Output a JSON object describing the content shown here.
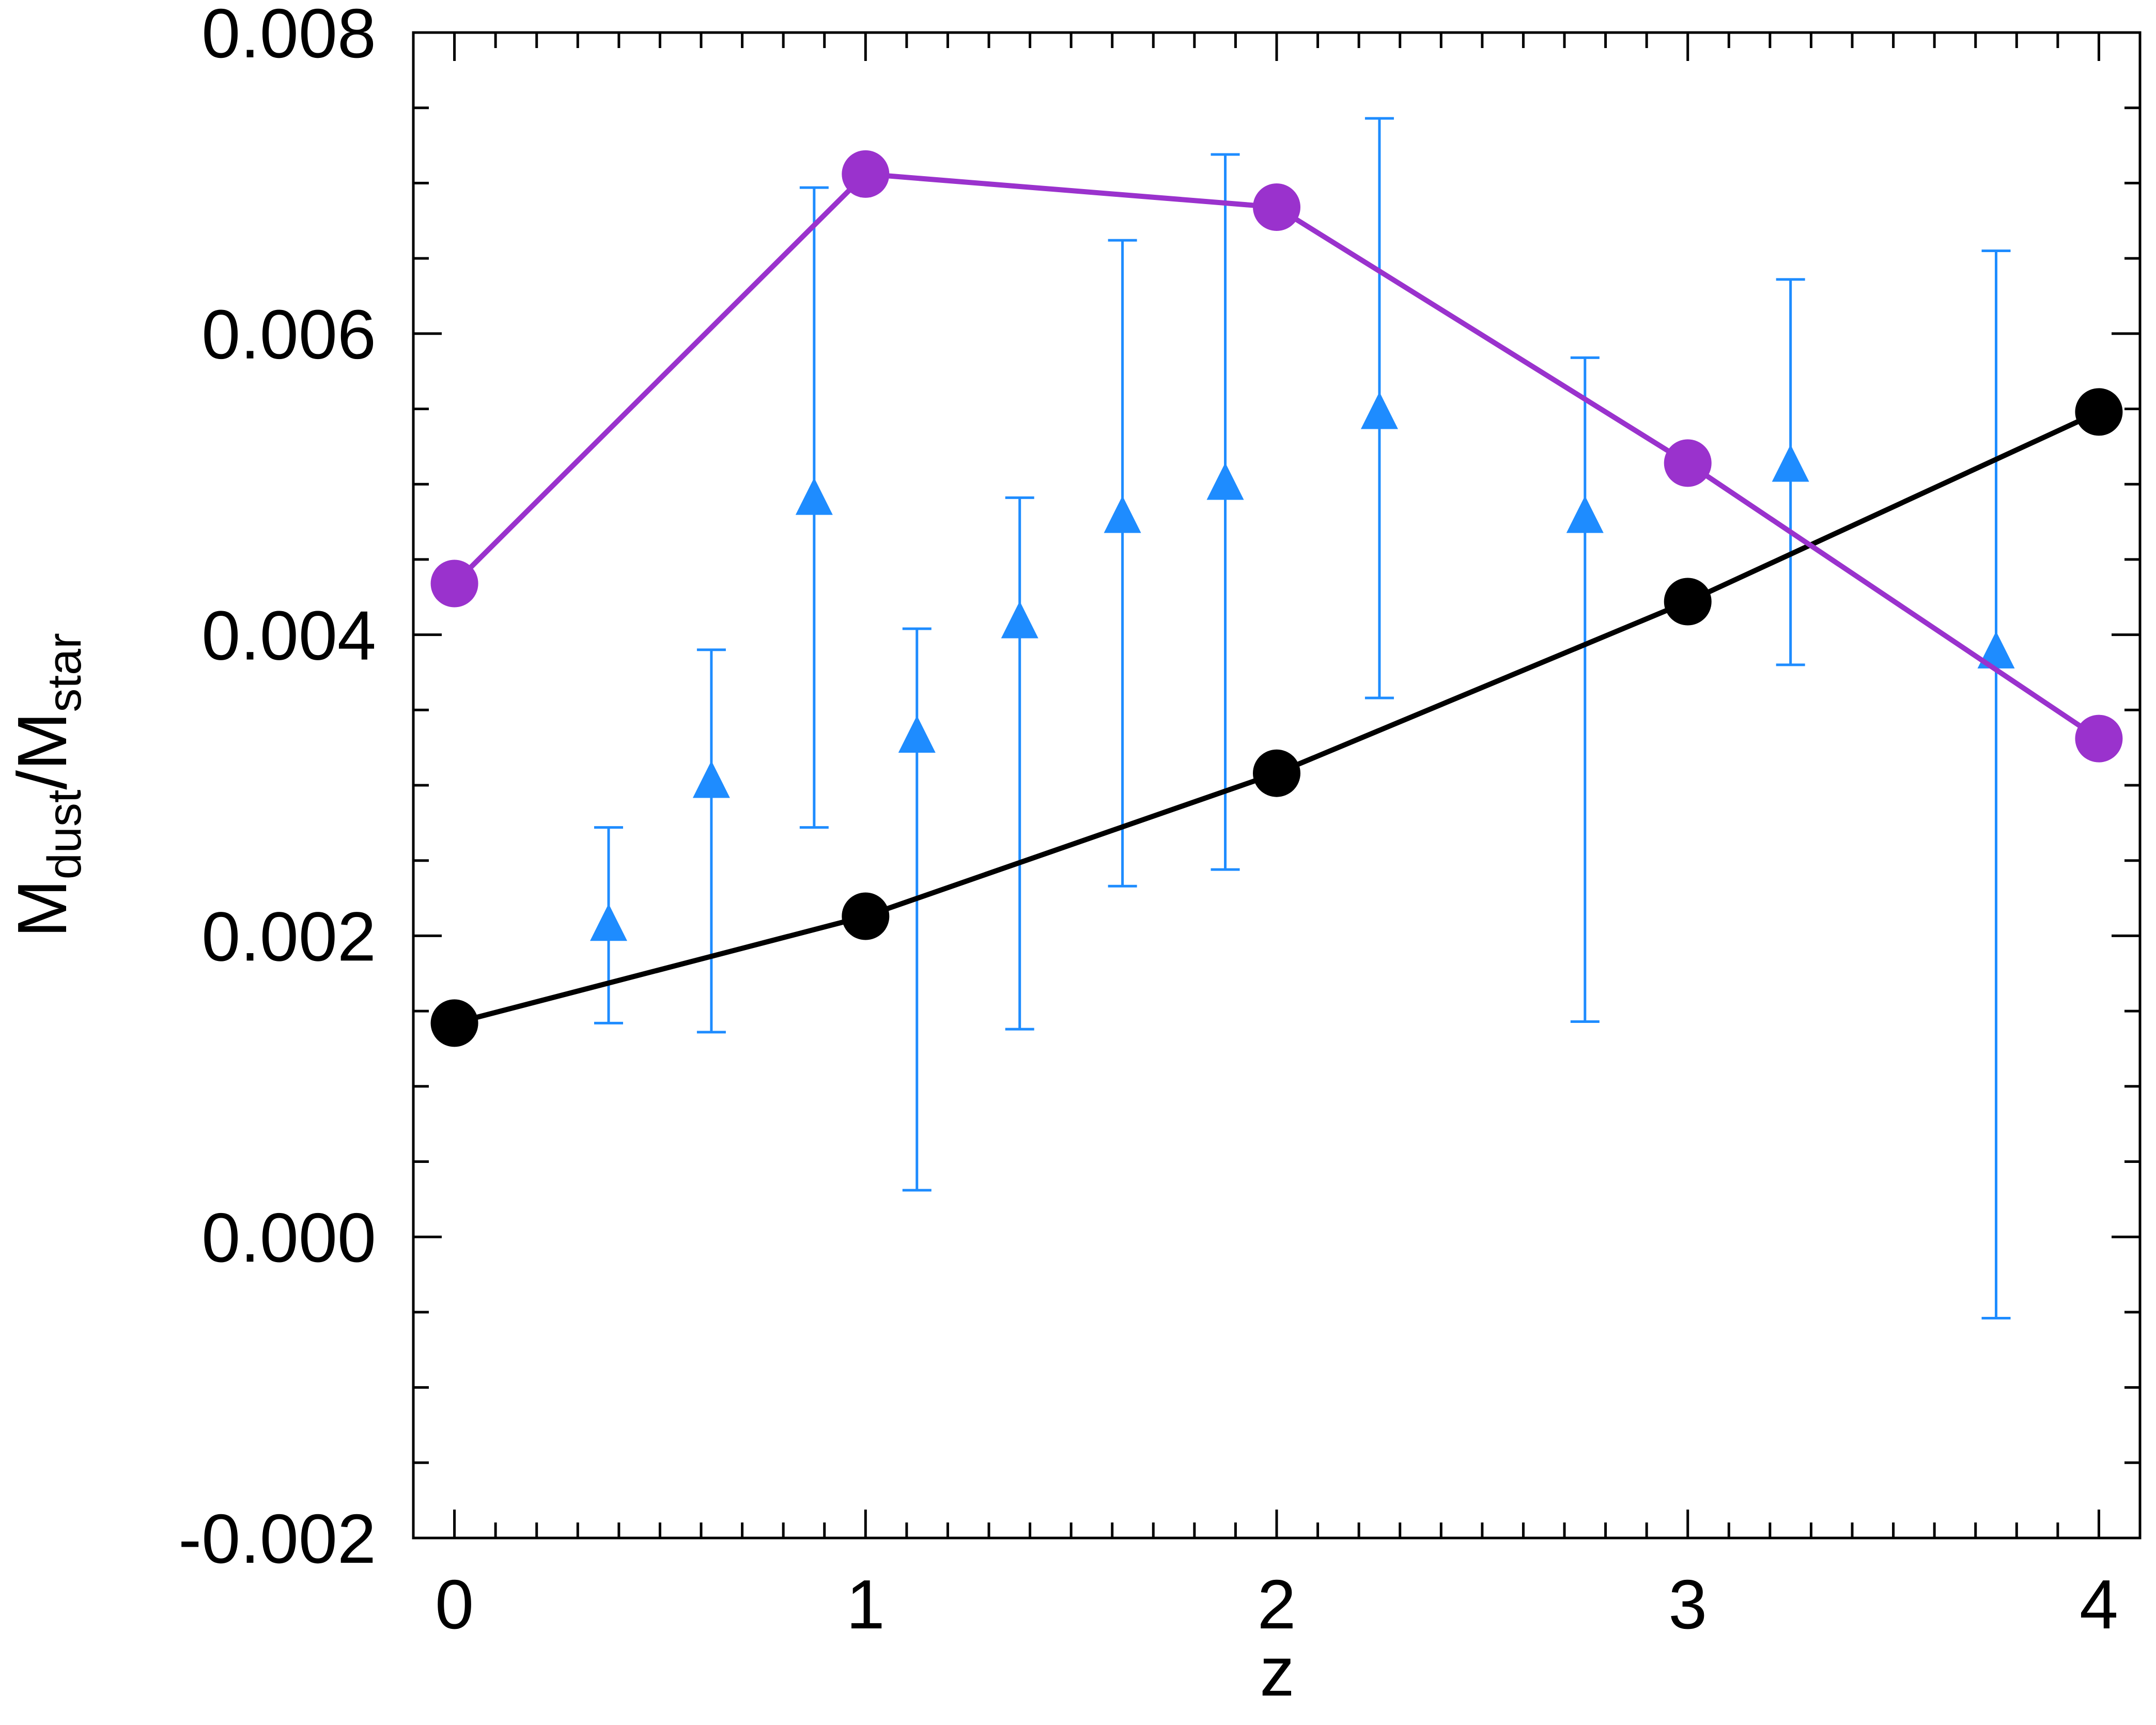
{
  "chart_data": {
    "type": "scatter",
    "title": "",
    "xlabel": "z",
    "ylabel": {
      "main": "M",
      "sub1": "dust",
      "slash": "/M",
      "sub2": "star"
    },
    "xlim": [
      -0.1,
      4.1
    ],
    "ylim": [
      -0.002,
      0.008
    ],
    "x_ticks": [
      {
        "value": 0,
        "label": "0"
      },
      {
        "value": 1,
        "label": "1"
      },
      {
        "value": 2,
        "label": "2"
      },
      {
        "value": 3,
        "label": "3"
      },
      {
        "value": 4,
        "label": "4"
      }
    ],
    "x_minor_step": 0.1,
    "y_ticks": [
      {
        "value": -0.002,
        "label": "-0.002"
      },
      {
        "value": 0.0,
        "label": "0.000"
      },
      {
        "value": 0.002,
        "label": "0.002"
      },
      {
        "value": 0.004,
        "label": "0.004"
      },
      {
        "value": 0.006,
        "label": "0.006"
      },
      {
        "value": 0.008,
        "label": "0.008"
      }
    ],
    "y_minor_step": 0.0005,
    "grid": false,
    "series": [
      {
        "id": "black-model",
        "color": "#000000",
        "marker": "circle",
        "line": true,
        "x": [
          0,
          1,
          2,
          3,
          4
        ],
        "y": [
          0.00142,
          0.00213,
          0.00308,
          0.00422,
          0.00548
        ]
      },
      {
        "id": "purple-model",
        "color": "#9a32cd",
        "marker": "circle",
        "line": true,
        "x": [
          0,
          1,
          2,
          3,
          4
        ],
        "y": [
          0.00434,
          0.00706,
          0.00684,
          0.00514,
          0.00331
        ]
      },
      {
        "id": "observations",
        "color": "#1e8cff",
        "marker": "triangle",
        "line": false,
        "x": [
          0.375,
          0.625,
          0.875,
          1.125,
          1.375,
          1.625,
          1.875,
          2.25,
          2.75,
          3.25,
          3.75
        ],
        "y": [
          0.00206,
          0.00301,
          0.00489,
          0.00331,
          0.00407,
          0.00477,
          0.00499,
          0.00546,
          0.00477,
          0.00511,
          0.00387
        ],
        "err_low": [
          0.00142,
          0.00136,
          0.00272,
          0.00031,
          0.00138,
          0.00233,
          0.00244,
          0.00358,
          0.00143,
          0.0038,
          -0.00054
        ],
        "err_high": [
          0.00272,
          0.0039,
          0.00697,
          0.00404,
          0.00491,
          0.00662,
          0.00719,
          0.00743,
          0.00584,
          0.00636,
          0.00655
        ]
      }
    ]
  }
}
